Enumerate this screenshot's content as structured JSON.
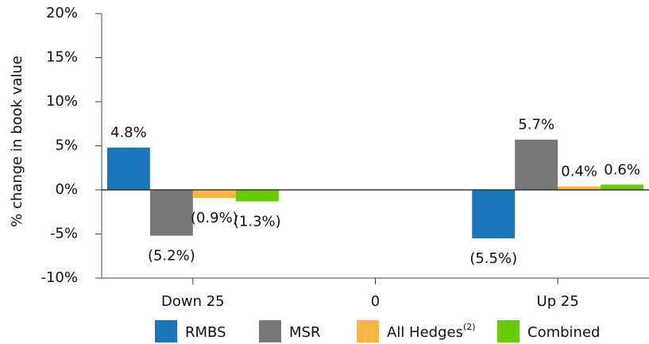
{
  "chart_data": {
    "type": "bar",
    "y_label": "% change in book value",
    "categories": [
      "Down 25",
      "0",
      "Up 25"
    ],
    "series": [
      {
        "name": "RMBS",
        "color": "#1b75bb",
        "values": [
          4.8,
          null,
          -5.5
        ],
        "value_labels": [
          "4.8%",
          null,
          "(5.5%)"
        ]
      },
      {
        "name": "MSR",
        "color": "#787878",
        "values": [
          -5.2,
          null,
          5.7
        ],
        "value_labels": [
          "(5.2%)",
          null,
          "5.7%"
        ]
      },
      {
        "name": "All Hedges",
        "superscript": "(2)",
        "color": "#fbb540",
        "values": [
          -0.9,
          null,
          0.4
        ],
        "value_labels": [
          "(0.9%)",
          null,
          "0.4%"
        ]
      },
      {
        "name": "Combined",
        "color": "#66cc00",
        "values": [
          -1.3,
          null,
          0.6
        ],
        "value_labels": [
          "(1.3%)",
          null,
          "0.6%"
        ]
      }
    ],
    "ylim": [
      -10,
      20
    ],
    "yticks": [
      {
        "value": -10,
        "label": "-10%"
      },
      {
        "value": -5,
        "label": "-5%"
      },
      {
        "value": 0,
        "label": "0%"
      },
      {
        "value": 5,
        "label": "5%"
      },
      {
        "value": 10,
        "label": "10%"
      },
      {
        "value": 15,
        "label": "15%"
      },
      {
        "value": 20,
        "label": "20%"
      }
    ],
    "legend": "bottom"
  }
}
